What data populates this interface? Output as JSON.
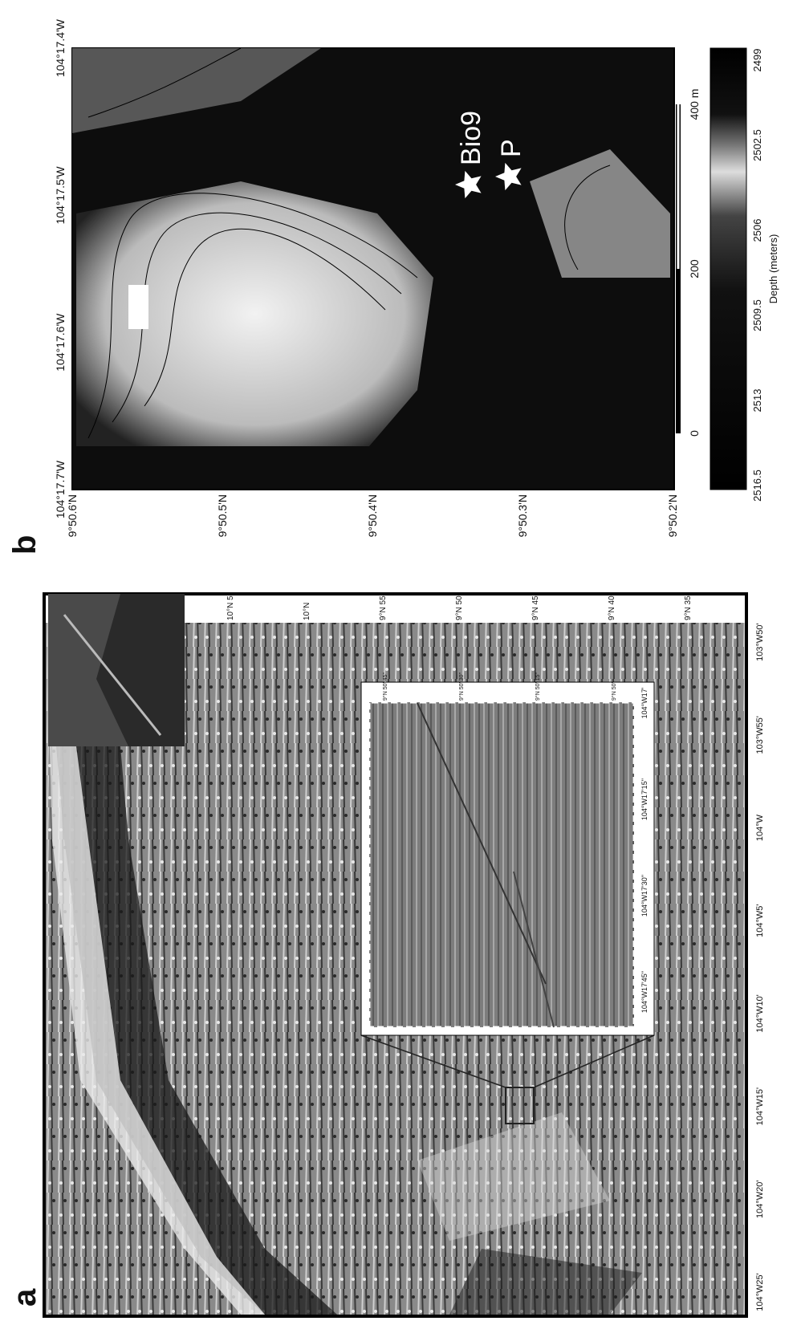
{
  "panel_a": {
    "label": "a",
    "lon_ticks": [
      "104°W25'",
      "104°W20'",
      "104°W15'",
      "104°W10'",
      "104°W5'",
      "104°W",
      "103°W55'",
      "103°W50'"
    ],
    "lat_ticks": [
      "10°N 5'",
      "10°N",
      "9°N 55'",
      "9°N 50'",
      "9°N 45'",
      "9°N 40'",
      "9°N 35'"
    ],
    "inset": {
      "lon_ticks": [
        "104°W17'45''",
        "104°W17'30''",
        "104°W17'15''",
        "104°W17'"
      ],
      "lat_ticks": [
        "9°N 50' 45''",
        "9°N 50' 30''",
        "9°N 50' 15''",
        "9°N 50'"
      ]
    }
  },
  "panel_b": {
    "label": "b",
    "lon_ticks": [
      "104°17.7'W",
      "104°17.6'W",
      "104°17.5'W",
      "104°17.4'W"
    ],
    "lat_ticks": [
      "9°50.6'N",
      "9°50.5'N",
      "9°50.4'N",
      "9°50.3'N",
      "9°50.2'N"
    ],
    "sites": [
      {
        "label": "Bio9"
      },
      {
        "label": "P"
      }
    ],
    "scale_bar": [
      "0",
      "200",
      "400 m"
    ],
    "colorbar": {
      "ticks": [
        "2516.5",
        "2513",
        "2509.5",
        "2506",
        "2502.5",
        "2499"
      ],
      "label": "Depth (meters)"
    }
  }
}
